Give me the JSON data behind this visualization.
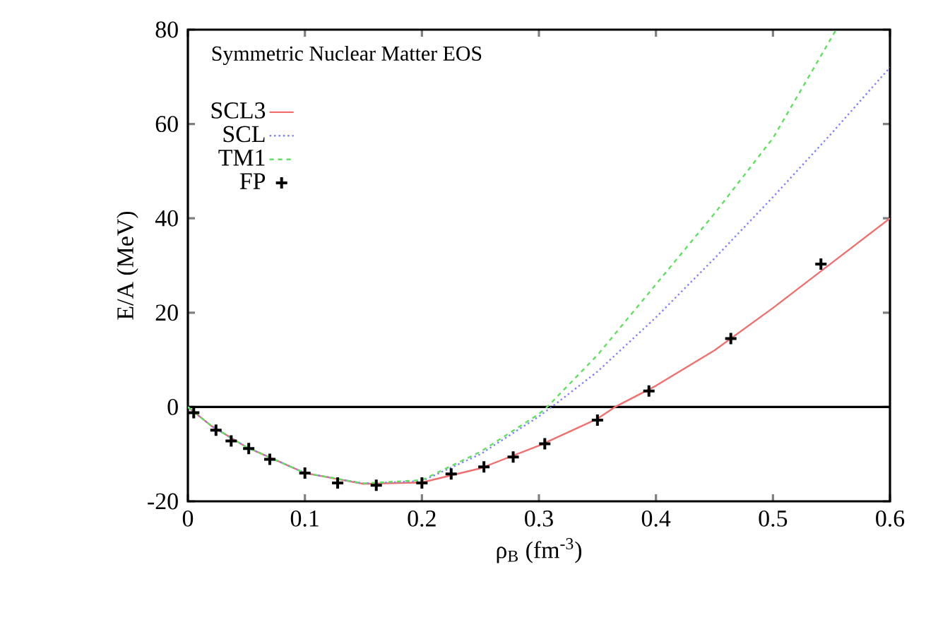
{
  "chart_data": {
    "type": "line",
    "xlabel": "ρ$_{B}$ (fm$^{-3}$)",
    "ylabel": "E/A (MeV)",
    "legend_title": "Symmetric Nuclear Matter EOS",
    "legend": "top left",
    "xlim": [
      0,
      0.6
    ],
    "ylim": [
      -20,
      80
    ],
    "xticks": [
      0,
      0.1,
      0.2,
      0.3,
      0.4,
      0.5,
      0.6
    ],
    "yticks": [
      -20,
      0,
      20,
      40,
      60,
      80
    ],
    "ref_lines": [
      {
        "axis": "y",
        "value": 0,
        "color": "#000000"
      }
    ],
    "series": [
      {
        "name": "SCL3",
        "color": "#f07070",
        "line_style": "solid",
        "marker": "none",
        "x": [
          0,
          0.02,
          0.05,
          0.1,
          0.15,
          0.2,
          0.25,
          0.3,
          0.35,
          0.365,
          0.4,
          0.45,
          0.5,
          0.55,
          0.6
        ],
        "values": [
          0,
          -4,
          -8.5,
          -14,
          -16.3,
          -16,
          -13,
          -8.2,
          -2.5,
          0,
          4.5,
          12,
          21,
          30.5,
          40
        ]
      },
      {
        "name": "SCL",
        "color": "#8080ff",
        "line_style": "dotted",
        "marker": "none",
        "x": [
          0,
          0.02,
          0.05,
          0.1,
          0.15,
          0.2,
          0.25,
          0.3,
          0.311,
          0.35,
          0.4,
          0.45,
          0.5,
          0.55,
          0.6
        ],
        "values": [
          0,
          -4,
          -8.5,
          -14,
          -16.2,
          -15.7,
          -10,
          -2,
          0,
          7.5,
          19,
          31.5,
          44.5,
          58,
          72
        ]
      },
      {
        "name": "TM1",
        "color": "#60e060",
        "line_style": "dashed",
        "marker": "none",
        "x": [
          0,
          0.02,
          0.05,
          0.1,
          0.15,
          0.2,
          0.25,
          0.3,
          0.307,
          0.35,
          0.4,
          0.45,
          0.5,
          0.554
        ],
        "values": [
          0,
          -4,
          -8.5,
          -14,
          -16.2,
          -15.5,
          -9.5,
          -1.5,
          0,
          11,
          26,
          41,
          57,
          80
        ]
      },
      {
        "name": "FP",
        "type": "scatter",
        "color": "#000000",
        "marker": "cross",
        "x": [
          0.005,
          0.024,
          0.037,
          0.052,
          0.07,
          0.1,
          0.128,
          0.161,
          0.2,
          0.225,
          0.253,
          0.278,
          0.305,
          0.35,
          0.394,
          0.464,
          0.541
        ],
        "values": [
          -1.2,
          -4.9,
          -7.2,
          -8.8,
          -11.1,
          -14,
          -16.1,
          -16.6,
          -16.1,
          -14.2,
          -12.7,
          -10.6,
          -7.8,
          -2.8,
          3.4,
          14.5,
          30.3
        ]
      }
    ]
  }
}
